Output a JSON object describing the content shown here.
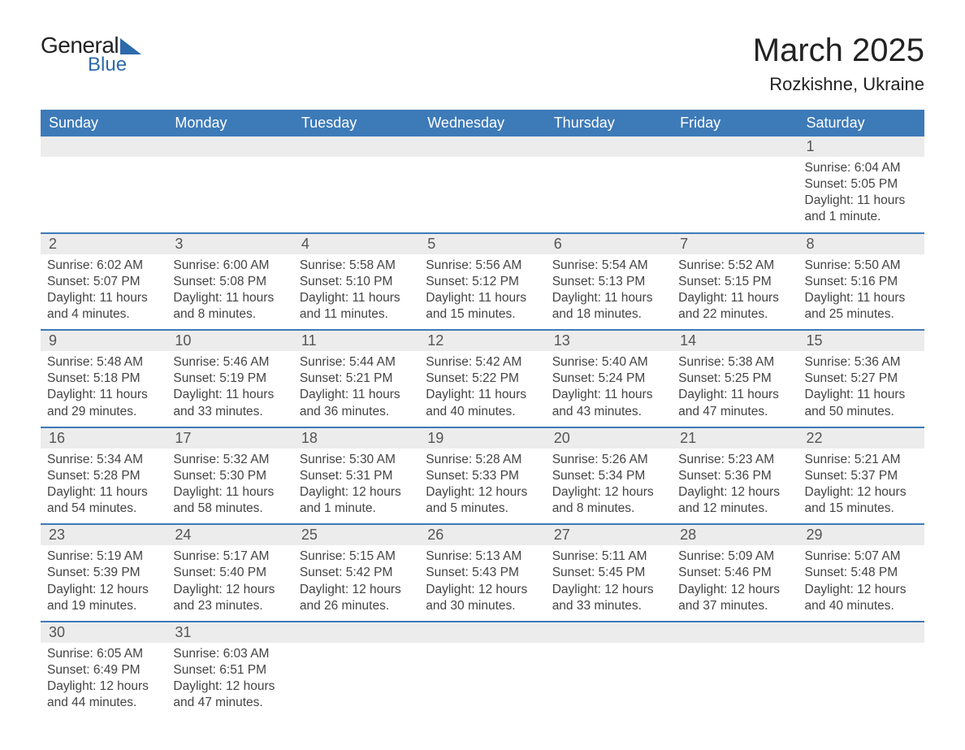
{
  "logo": {
    "text1": "General",
    "text2": "Blue",
    "accent_color": "#2d6aab"
  },
  "title": "March 2025",
  "location": "Rozkishne, Ukraine",
  "colors": {
    "header_bg": "#3d7ab8",
    "header_text": "#ffffff",
    "daynum_bg": "#ececec",
    "daynum_text": "#555555",
    "body_text": "#444444",
    "rule": "#3d7ab8"
  },
  "fonts": {
    "title_size": 40,
    "location_size": 22,
    "header_size": 18,
    "daynum_size": 18,
    "body_size": 15.5
  },
  "day_headers": [
    "Sunday",
    "Monday",
    "Tuesday",
    "Wednesday",
    "Thursday",
    "Friday",
    "Saturday"
  ],
  "weeks": [
    [
      null,
      null,
      null,
      null,
      null,
      null,
      {
        "n": "1",
        "sunrise": "Sunrise: 6:04 AM",
        "sunset": "Sunset: 5:05 PM",
        "dl1": "Daylight: 11 hours",
        "dl2": "and 1 minute."
      }
    ],
    [
      {
        "n": "2",
        "sunrise": "Sunrise: 6:02 AM",
        "sunset": "Sunset: 5:07 PM",
        "dl1": "Daylight: 11 hours",
        "dl2": "and 4 minutes."
      },
      {
        "n": "3",
        "sunrise": "Sunrise: 6:00 AM",
        "sunset": "Sunset: 5:08 PM",
        "dl1": "Daylight: 11 hours",
        "dl2": "and 8 minutes."
      },
      {
        "n": "4",
        "sunrise": "Sunrise: 5:58 AM",
        "sunset": "Sunset: 5:10 PM",
        "dl1": "Daylight: 11 hours",
        "dl2": "and 11 minutes."
      },
      {
        "n": "5",
        "sunrise": "Sunrise: 5:56 AM",
        "sunset": "Sunset: 5:12 PM",
        "dl1": "Daylight: 11 hours",
        "dl2": "and 15 minutes."
      },
      {
        "n": "6",
        "sunrise": "Sunrise: 5:54 AM",
        "sunset": "Sunset: 5:13 PM",
        "dl1": "Daylight: 11 hours",
        "dl2": "and 18 minutes."
      },
      {
        "n": "7",
        "sunrise": "Sunrise: 5:52 AM",
        "sunset": "Sunset: 5:15 PM",
        "dl1": "Daylight: 11 hours",
        "dl2": "and 22 minutes."
      },
      {
        "n": "8",
        "sunrise": "Sunrise: 5:50 AM",
        "sunset": "Sunset: 5:16 PM",
        "dl1": "Daylight: 11 hours",
        "dl2": "and 25 minutes."
      }
    ],
    [
      {
        "n": "9",
        "sunrise": "Sunrise: 5:48 AM",
        "sunset": "Sunset: 5:18 PM",
        "dl1": "Daylight: 11 hours",
        "dl2": "and 29 minutes."
      },
      {
        "n": "10",
        "sunrise": "Sunrise: 5:46 AM",
        "sunset": "Sunset: 5:19 PM",
        "dl1": "Daylight: 11 hours",
        "dl2": "and 33 minutes."
      },
      {
        "n": "11",
        "sunrise": "Sunrise: 5:44 AM",
        "sunset": "Sunset: 5:21 PM",
        "dl1": "Daylight: 11 hours",
        "dl2": "and 36 minutes."
      },
      {
        "n": "12",
        "sunrise": "Sunrise: 5:42 AM",
        "sunset": "Sunset: 5:22 PM",
        "dl1": "Daylight: 11 hours",
        "dl2": "and 40 minutes."
      },
      {
        "n": "13",
        "sunrise": "Sunrise: 5:40 AM",
        "sunset": "Sunset: 5:24 PM",
        "dl1": "Daylight: 11 hours",
        "dl2": "and 43 minutes."
      },
      {
        "n": "14",
        "sunrise": "Sunrise: 5:38 AM",
        "sunset": "Sunset: 5:25 PM",
        "dl1": "Daylight: 11 hours",
        "dl2": "and 47 minutes."
      },
      {
        "n": "15",
        "sunrise": "Sunrise: 5:36 AM",
        "sunset": "Sunset: 5:27 PM",
        "dl1": "Daylight: 11 hours",
        "dl2": "and 50 minutes."
      }
    ],
    [
      {
        "n": "16",
        "sunrise": "Sunrise: 5:34 AM",
        "sunset": "Sunset: 5:28 PM",
        "dl1": "Daylight: 11 hours",
        "dl2": "and 54 minutes."
      },
      {
        "n": "17",
        "sunrise": "Sunrise: 5:32 AM",
        "sunset": "Sunset: 5:30 PM",
        "dl1": "Daylight: 11 hours",
        "dl2": "and 58 minutes."
      },
      {
        "n": "18",
        "sunrise": "Sunrise: 5:30 AM",
        "sunset": "Sunset: 5:31 PM",
        "dl1": "Daylight: 12 hours",
        "dl2": "and 1 minute."
      },
      {
        "n": "19",
        "sunrise": "Sunrise: 5:28 AM",
        "sunset": "Sunset: 5:33 PM",
        "dl1": "Daylight: 12 hours",
        "dl2": "and 5 minutes."
      },
      {
        "n": "20",
        "sunrise": "Sunrise: 5:26 AM",
        "sunset": "Sunset: 5:34 PM",
        "dl1": "Daylight: 12 hours",
        "dl2": "and 8 minutes."
      },
      {
        "n": "21",
        "sunrise": "Sunrise: 5:23 AM",
        "sunset": "Sunset: 5:36 PM",
        "dl1": "Daylight: 12 hours",
        "dl2": "and 12 minutes."
      },
      {
        "n": "22",
        "sunrise": "Sunrise: 5:21 AM",
        "sunset": "Sunset: 5:37 PM",
        "dl1": "Daylight: 12 hours",
        "dl2": "and 15 minutes."
      }
    ],
    [
      {
        "n": "23",
        "sunrise": "Sunrise: 5:19 AM",
        "sunset": "Sunset: 5:39 PM",
        "dl1": "Daylight: 12 hours",
        "dl2": "and 19 minutes."
      },
      {
        "n": "24",
        "sunrise": "Sunrise: 5:17 AM",
        "sunset": "Sunset: 5:40 PM",
        "dl1": "Daylight: 12 hours",
        "dl2": "and 23 minutes."
      },
      {
        "n": "25",
        "sunrise": "Sunrise: 5:15 AM",
        "sunset": "Sunset: 5:42 PM",
        "dl1": "Daylight: 12 hours",
        "dl2": "and 26 minutes."
      },
      {
        "n": "26",
        "sunrise": "Sunrise: 5:13 AM",
        "sunset": "Sunset: 5:43 PM",
        "dl1": "Daylight: 12 hours",
        "dl2": "and 30 minutes."
      },
      {
        "n": "27",
        "sunrise": "Sunrise: 5:11 AM",
        "sunset": "Sunset: 5:45 PM",
        "dl1": "Daylight: 12 hours",
        "dl2": "and 33 minutes."
      },
      {
        "n": "28",
        "sunrise": "Sunrise: 5:09 AM",
        "sunset": "Sunset: 5:46 PM",
        "dl1": "Daylight: 12 hours",
        "dl2": "and 37 minutes."
      },
      {
        "n": "29",
        "sunrise": "Sunrise: 5:07 AM",
        "sunset": "Sunset: 5:48 PM",
        "dl1": "Daylight: 12 hours",
        "dl2": "and 40 minutes."
      }
    ],
    [
      {
        "n": "30",
        "sunrise": "Sunrise: 6:05 AM",
        "sunset": "Sunset: 6:49 PM",
        "dl1": "Daylight: 12 hours",
        "dl2": "and 44 minutes."
      },
      {
        "n": "31",
        "sunrise": "Sunrise: 6:03 AM",
        "sunset": "Sunset: 6:51 PM",
        "dl1": "Daylight: 12 hours",
        "dl2": "and 47 minutes."
      },
      null,
      null,
      null,
      null,
      null
    ]
  ]
}
